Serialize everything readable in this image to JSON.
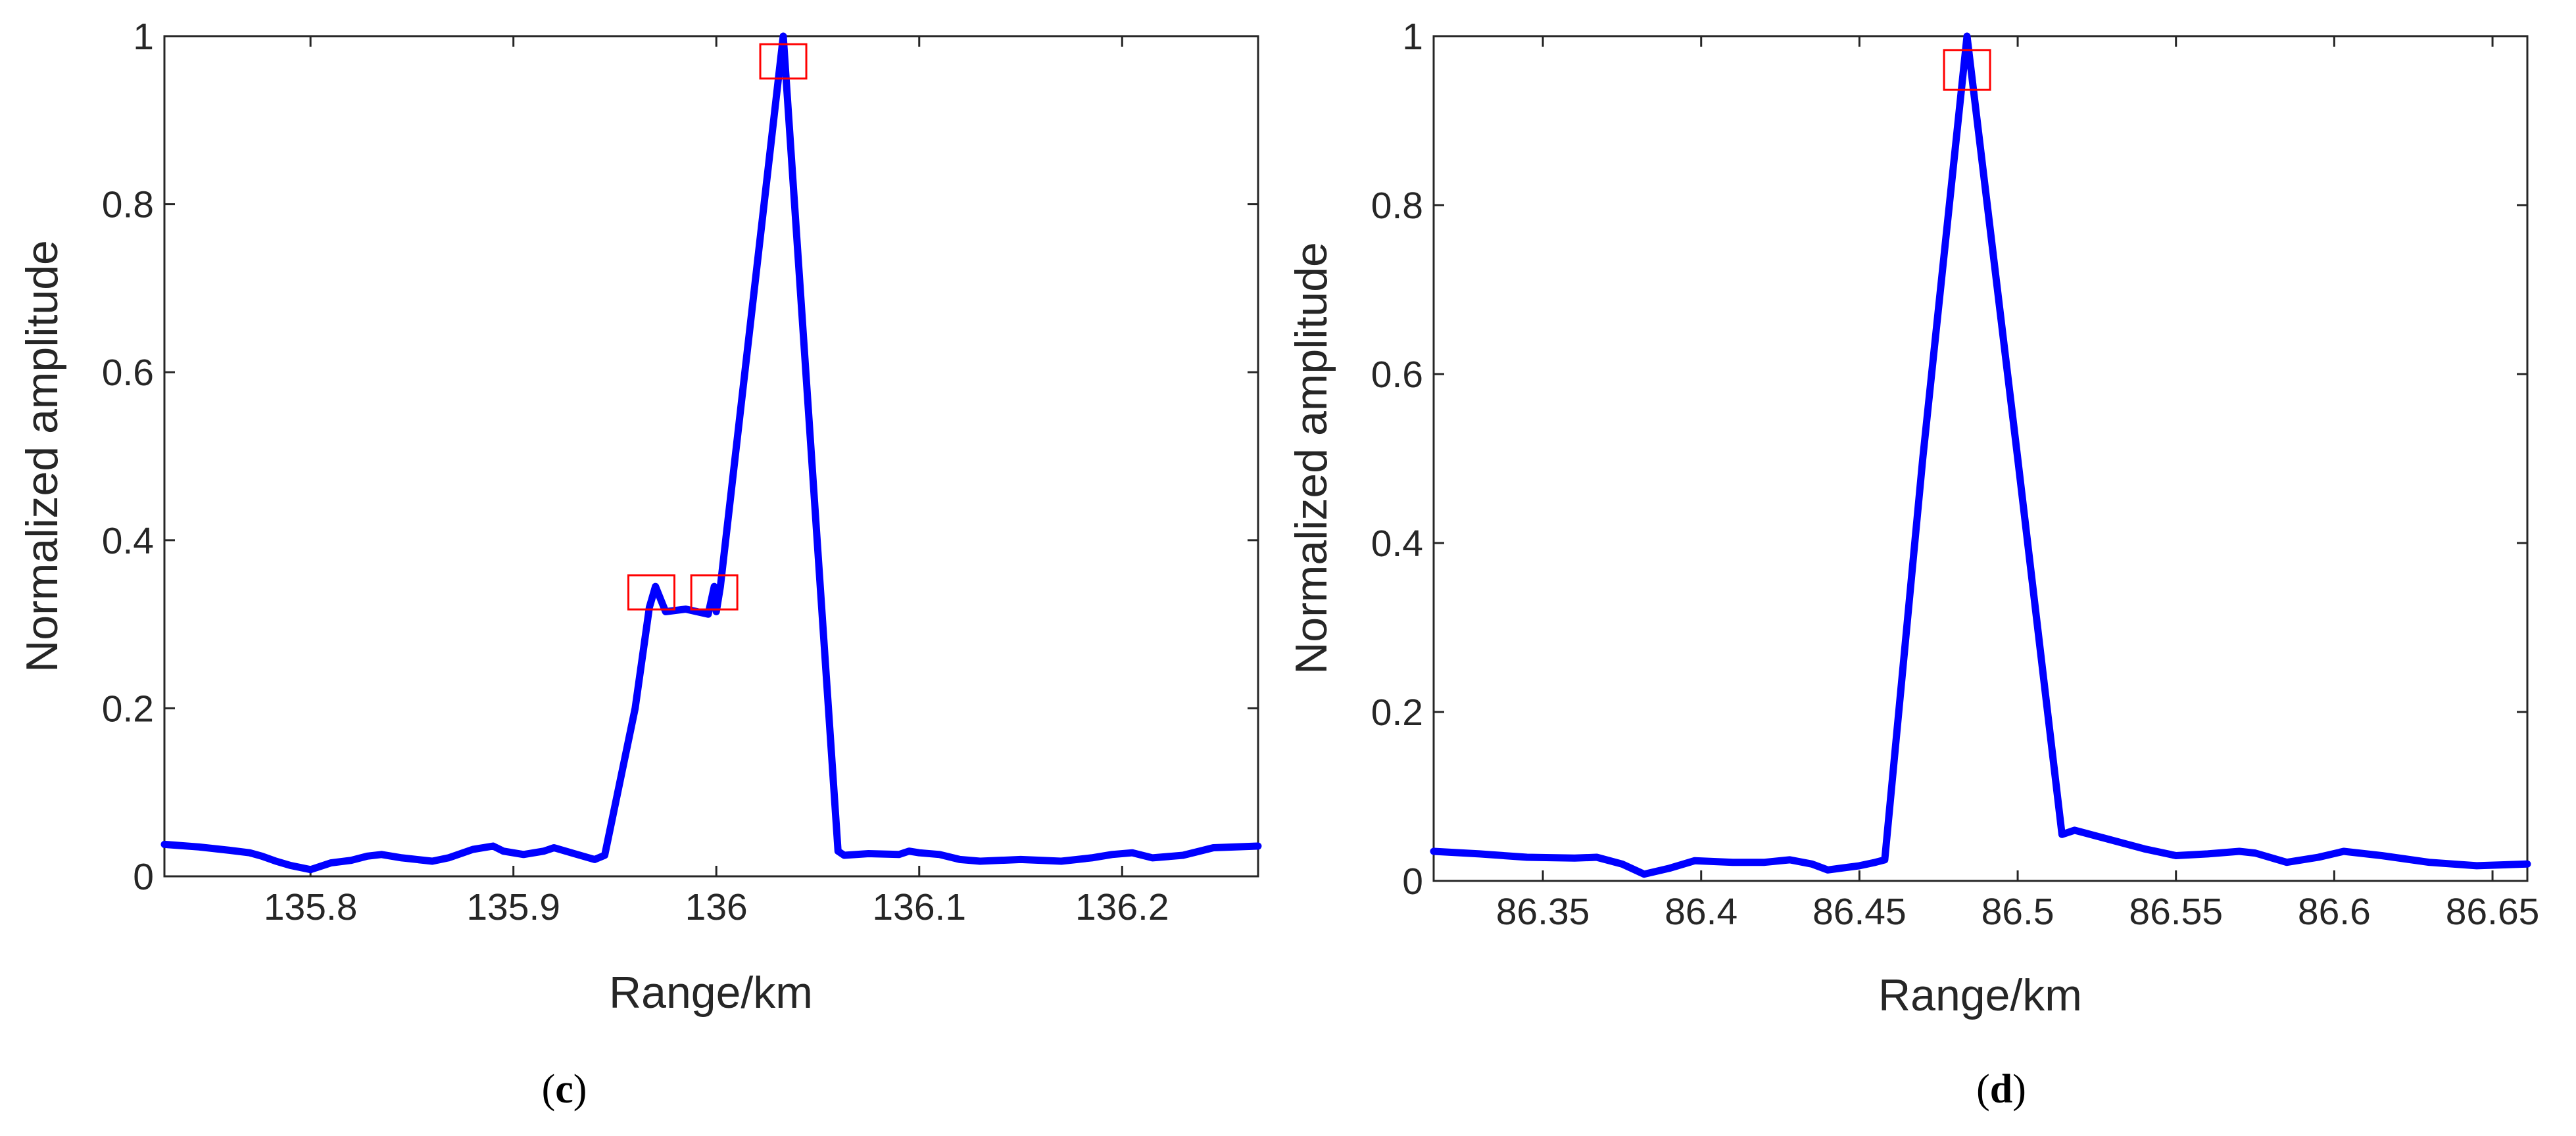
{
  "chart_data": [
    {
      "type": "line",
      "panel_label": "c",
      "xlabel": "Range/km",
      "ylabel": "Normalized amplitude",
      "xlim": [
        135.728,
        136.267
      ],
      "ylim": [
        0,
        1
      ],
      "xticks": [
        135.8,
        135.9,
        136,
        136.1,
        136.2
      ],
      "xtick_labels": [
        "135.8",
        "135.9",
        "136",
        "136.1",
        "136.2"
      ],
      "yticks": [
        0,
        0.2,
        0.4,
        0.6,
        0.8,
        1
      ],
      "ytick_labels": [
        "0",
        "0.2",
        "0.4",
        "0.6",
        "0.8",
        "1"
      ],
      "grid": false,
      "line_color": "#0000ff",
      "marker_color": "#ff0000",
      "series": [
        {
          "x": [
            135.728,
            135.745,
            135.76,
            135.77,
            135.776,
            135.783,
            135.79,
            135.8,
            135.81,
            135.82,
            135.828,
            135.835,
            135.845,
            135.86,
            135.868,
            135.88,
            135.89,
            135.895,
            135.905,
            135.915,
            135.92,
            135.93,
            135.94,
            135.945,
            135.96,
            135.967,
            135.97,
            135.975,
            135.985,
            135.996,
            135.999,
            136.0,
            136.002,
            136.033,
            136.06,
            136.063,
            136.075,
            136.09,
            136.095,
            136.1,
            136.11,
            136.12,
            136.13,
            136.15,
            136.17,
            136.185,
            136.195,
            136.205,
            136.215,
            136.23,
            136.245,
            136.267
          ],
          "y": [
            0.038,
            0.035,
            0.031,
            0.028,
            0.024,
            0.018,
            0.013,
            0.008,
            0.016,
            0.019,
            0.024,
            0.026,
            0.022,
            0.018,
            0.022,
            0.032,
            0.036,
            0.03,
            0.026,
            0.03,
            0.034,
            0.027,
            0.02,
            0.025,
            0.2,
            0.32,
            0.345,
            0.315,
            0.318,
            0.312,
            0.345,
            0.315,
            0.345,
            1.0,
            0.03,
            0.025,
            0.027,
            0.026,
            0.03,
            0.028,
            0.026,
            0.02,
            0.018,
            0.02,
            0.018,
            0.022,
            0.026,
            0.028,
            0.022,
            0.025,
            0.034,
            0.036
          ]
        }
      ],
      "markers": [
        {
          "x": 135.968,
          "y": 0.338
        },
        {
          "x": 135.999,
          "y": 0.338
        },
        {
          "x": 136.033,
          "y": 0.97
        }
      ]
    },
    {
      "type": "line",
      "panel_label": "d",
      "xlabel": "Range/km",
      "ylabel": "Normalized amplitude",
      "xlim": [
        86.3155,
        86.661
      ],
      "ylim": [
        0,
        1
      ],
      "xticks": [
        86.35,
        86.4,
        86.45,
        86.5,
        86.55,
        86.6,
        86.65
      ],
      "xtick_labels": [
        "86.35",
        "86.4",
        "86.45",
        "86.5",
        "86.55",
        "86.6",
        "86.65"
      ],
      "yticks": [
        0,
        0.2,
        0.4,
        0.6,
        0.8,
        1
      ],
      "ytick_labels": [
        "0",
        "0.2",
        "0.4",
        "0.6",
        "0.8",
        "1"
      ],
      "grid": false,
      "line_color": "#0000ff",
      "marker_color": "#ff0000",
      "series": [
        {
          "x": [
            86.3155,
            86.33,
            86.345,
            86.36,
            86.367,
            86.375,
            86.382,
            86.39,
            86.398,
            86.41,
            86.42,
            86.428,
            86.435,
            86.44,
            86.45,
            86.455,
            86.458,
            86.47,
            86.484,
            86.5,
            86.514,
            86.518,
            86.53,
            86.54,
            86.55,
            86.56,
            86.57,
            86.575,
            86.585,
            86.595,
            86.603,
            86.615,
            86.63,
            86.645,
            86.661
          ],
          "y": [
            0.035,
            0.032,
            0.028,
            0.027,
            0.028,
            0.02,
            0.008,
            0.015,
            0.024,
            0.022,
            0.022,
            0.025,
            0.02,
            0.013,
            0.018,
            0.022,
            0.025,
            0.5,
            1.0,
            0.5,
            0.055,
            0.06,
            0.048,
            0.038,
            0.03,
            0.032,
            0.035,
            0.033,
            0.022,
            0.028,
            0.035,
            0.03,
            0.022,
            0.018,
            0.02
          ]
        }
      ],
      "markers": [
        {
          "x": 86.484,
          "y": 0.96
        }
      ]
    }
  ]
}
